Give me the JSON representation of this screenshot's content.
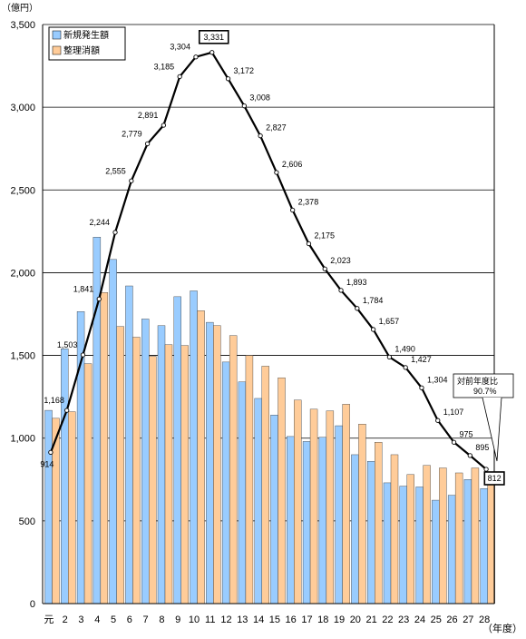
{
  "chart_data": {
    "type": "bar",
    "unit_label": "（億円）",
    "x_axis_label": "（年度）",
    "categories": [
      "元",
      "2",
      "3",
      "4",
      "5",
      "6",
      "7",
      "8",
      "9",
      "10",
      "11",
      "12",
      "13",
      "14",
      "15",
      "16",
      "17",
      "18",
      "19",
      "20",
      "21",
      "22",
      "23",
      "24",
      "25",
      "26",
      "27",
      "28"
    ],
    "series": [
      {
        "name": "新規発生額",
        "type": "bar",
        "color": "#99ccff",
        "values": [
          1168,
          1540,
          1765,
          2215,
          2080,
          1920,
          1720,
          1680,
          1855,
          1890,
          1700,
          1460,
          1340,
          1240,
          1140,
          1010,
          980,
          1005,
          1075,
          900,
          860,
          730,
          710,
          705,
          625,
          655,
          750,
          695
        ]
      },
      {
        "name": "整理消額",
        "type": "bar",
        "color": "#ffcc99",
        "values": [
          1120,
          1160,
          1450,
          1880,
          1675,
          1610,
          1495,
          1565,
          1560,
          1770,
          1680,
          1620,
          1500,
          1435,
          1365,
          1230,
          1175,
          1165,
          1205,
          1085,
          975,
          900,
          780,
          835,
          820,
          790,
          820,
          770
        ]
      },
      {
        "name": "balance",
        "type": "line",
        "color": "#000000",
        "values": [
          914,
          1168,
          1503,
          1841,
          2244,
          2555,
          2779,
          2891,
          3185,
          3304,
          3331,
          3172,
          3008,
          2827,
          2606,
          2378,
          2175,
          2023,
          1893,
          1784,
          1657,
          1490,
          1427,
          1304,
          1107,
          975,
          895,
          812
        ]
      }
    ],
    "line_labels": [
      "914",
      "1,168",
      "1,503",
      "1,841",
      "2,244",
      "2,555",
      "2,779",
      "2,891",
      "3,185",
      "3,304",
      "3,331",
      "3,172",
      "3,008",
      "2,827",
      "2,606",
      "2,378",
      "2,175",
      "2,023",
      "1,893",
      "1,784",
      "1,657",
      "1,490",
      "1,427",
      "1,304",
      "1,107",
      "975",
      "895",
      "812"
    ],
    "boxed_labels": [
      10,
      27
    ],
    "y_ticks": [
      "0",
      "500",
      "1,000",
      "1,500",
      "2,000",
      "2,500",
      "3,000",
      "3,500"
    ],
    "ylim": [
      0,
      3500
    ],
    "grid": true,
    "legend_position": "top-left",
    "annotation": {
      "line1": "対前年度比",
      "line2": "90.7%"
    }
  }
}
